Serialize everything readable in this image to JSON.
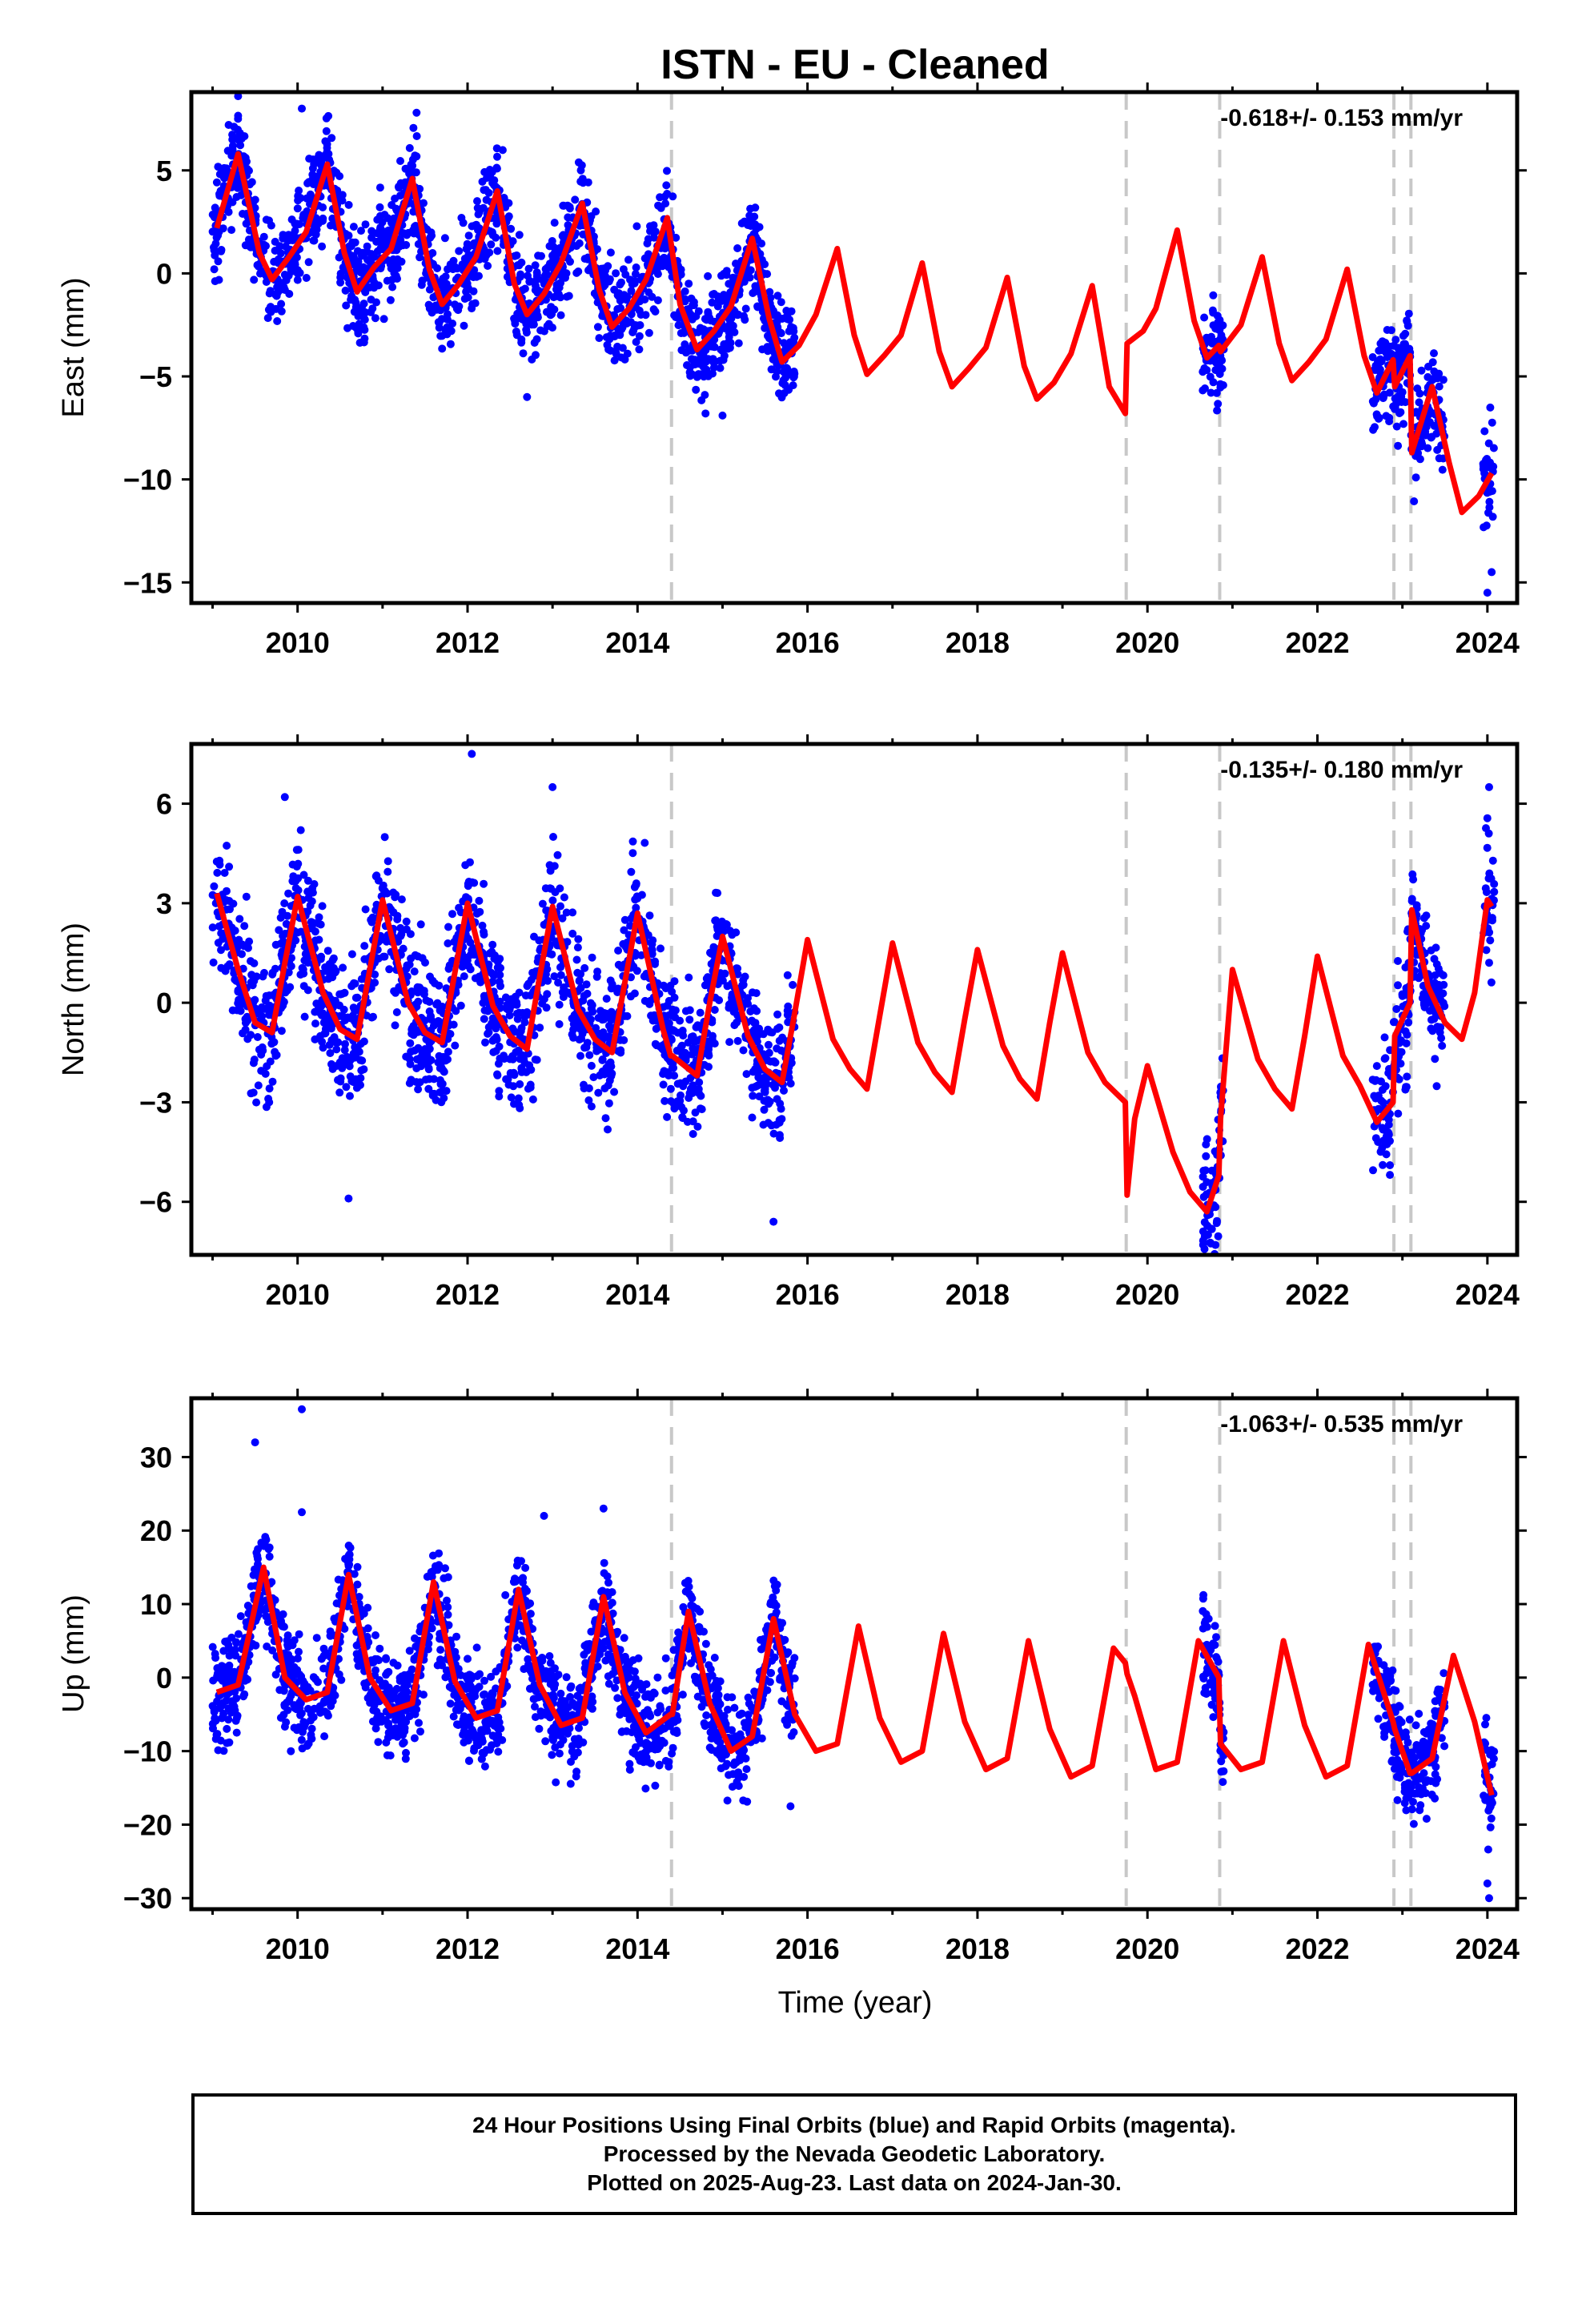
{
  "title": "ISTN  - EU - Cleaned",
  "xlabel": "Time (year)",
  "colors": {
    "points": "#0000ff",
    "model": "#ff0000",
    "breaks": "#c8c8c8"
  },
  "chart_data": [
    {
      "type": "scatter",
      "component": "East",
      "ylabel": "East (mm)",
      "rate_label": "-0.618+/- 0.153 mm/yr",
      "xlim": [
        2008.75,
        2024.35
      ],
      "ylim": [
        -16.0,
        8.8
      ],
      "xticks": [
        2010,
        2012,
        2014,
        2016,
        2018,
        2020,
        2022,
        2024
      ],
      "yticks": [
        5,
        0,
        -5,
        -10,
        -15
      ],
      "ytick_labels": [
        "5",
        "0",
        "−5",
        "−10",
        "−15"
      ],
      "breaks": [
        2014.4,
        2019.75,
        2020.85,
        2022.9,
        2023.1
      ],
      "model": {
        "x": [
          2009.05,
          2009.3,
          2009.55,
          2009.7,
          2009.9,
          2010.1,
          2010.35,
          2010.55,
          2010.7,
          2010.9,
          2011.1,
          2011.35,
          2011.55,
          2011.7,
          2011.9,
          2012.1,
          2012.35,
          2012.55,
          2012.7,
          2012.9,
          2013.1,
          2013.35,
          2013.55,
          2013.7,
          2013.9,
          2014.1,
          2014.35,
          2014.5,
          2014.7,
          2014.9,
          2015.1,
          2015.35,
          2015.55,
          2015.7,
          2015.9,
          2016.1,
          2016.35,
          2016.55,
          2016.7,
          2016.9,
          2017.1,
          2017.35,
          2017.55,
          2017.7,
          2017.9,
          2018.1,
          2018.35,
          2018.55,
          2018.7,
          2018.9,
          2019.1,
          2019.35,
          2019.55,
          2019.74,
          2019.76,
          2019.95,
          2020.1,
          2020.35,
          2020.55,
          2020.7,
          2020.84,
          2020.86,
          2021.1,
          2021.35,
          2021.55,
          2021.7,
          2021.9,
          2022.1,
          2022.35,
          2022.55,
          2022.7,
          2022.89,
          2022.91,
          2023.09,
          2023.11,
          2023.35,
          2023.55,
          2023.7,
          2023.9,
          2024.05
        ],
        "y": [
          2.2,
          5.8,
          1.0,
          -0.3,
          0.8,
          2.0,
          5.3,
          1.0,
          -0.9,
          0.3,
          1.2,
          4.6,
          0.2,
          -1.5,
          -0.5,
          0.8,
          4.0,
          -0.5,
          -2.0,
          -1.0,
          0.5,
          3.4,
          -0.8,
          -2.6,
          -1.7,
          -0.3,
          2.7,
          -1.5,
          -3.7,
          -2.8,
          -1.6,
          1.7,
          -2.2,
          -4.3,
          -3.5,
          -2.0,
          1.2,
          -3.0,
          -4.9,
          -4.0,
          -3.0,
          0.5,
          -3.8,
          -5.5,
          -4.6,
          -3.6,
          -0.2,
          -4.5,
          -6.1,
          -5.3,
          -3.9,
          -0.6,
          -5.5,
          -6.8,
          -3.4,
          -2.8,
          -1.7,
          2.1,
          -2.3,
          -4.1,
          -3.5,
          -3.8,
          -2.5,
          0.8,
          -3.4,
          -5.2,
          -4.3,
          -3.2,
          0.2,
          -4.0,
          -5.8,
          -4.2,
          -5.5,
          -4.0,
          -8.7,
          -5.5,
          -9.2,
          -11.6,
          -10.8,
          -9.7
        ]
      },
      "scatter_amp": 1.9,
      "observed_ranges": [
        [
          2009.0,
          2015.85
        ],
        [
          2020.65,
          2020.9
        ],
        [
          2022.65,
          2023.5
        ],
        [
          2023.95,
          2024.08
        ]
      ],
      "outliers": [
        {
          "x": 2009.3,
          "y": 8.6
        },
        {
          "x": 2010.05,
          "y": 8.0
        },
        {
          "x": 2011.4,
          "y": 7.8
        },
        {
          "x": 2012.7,
          "y": -6.0
        },
        {
          "x": 2014.8,
          "y": -6.8
        },
        {
          "x": 2015.0,
          "y": -6.9
        },
        {
          "x": 2024.0,
          "y": -15.5
        },
        {
          "x": 2024.05,
          "y": -14.5
        }
      ]
    },
    {
      "type": "scatter",
      "component": "North",
      "ylabel": "North (mm)",
      "rate_label": "-0.135+/- 0.180 mm/yr",
      "xlim": [
        2008.75,
        2024.35
      ],
      "ylim": [
        -7.6,
        7.8
      ],
      "xticks": [
        2010,
        2012,
        2014,
        2016,
        2018,
        2020,
        2022,
        2024
      ],
      "yticks": [
        6,
        3,
        0,
        -3,
        -6
      ],
      "ytick_labels": [
        "6",
        "3",
        "0",
        "−3",
        "−6"
      ],
      "breaks": [
        2014.4,
        2019.75,
        2020.85,
        2022.9,
        2023.1
      ],
      "model": {
        "x": [
          2009.05,
          2009.3,
          2009.5,
          2009.7,
          2009.85,
          2010.0,
          2010.3,
          2010.5,
          2010.7,
          2010.85,
          2011.0,
          2011.3,
          2011.5,
          2011.7,
          2011.85,
          2012.0,
          2012.3,
          2012.5,
          2012.7,
          2012.85,
          2013.0,
          2013.3,
          2013.5,
          2013.7,
          2013.85,
          2014.0,
          2014.3,
          2014.39,
          2014.41,
          2014.7,
          2014.85,
          2015.0,
          2015.3,
          2015.5,
          2015.7,
          2015.85,
          2016.0,
          2016.3,
          2016.5,
          2016.7,
          2016.85,
          2017.0,
          2017.3,
          2017.5,
          2017.7,
          2017.85,
          2018.0,
          2018.3,
          2018.5,
          2018.7,
          2018.85,
          2019.0,
          2019.3,
          2019.5,
          2019.74,
          2019.76,
          2019.85,
          2020.0,
          2020.3,
          2020.5,
          2020.7,
          2020.84,
          2020.86,
          2021.0,
          2021.3,
          2021.5,
          2021.7,
          2021.85,
          2022.0,
          2022.3,
          2022.5,
          2022.7,
          2022.89,
          2022.91,
          2023.09,
          2023.11,
          2023.3,
          2023.5,
          2023.7,
          2023.85,
          2024.0,
          2024.05
        ],
        "y": [
          3.3,
          1.0,
          -0.6,
          -0.9,
          1.2,
          3.2,
          0.3,
          -0.8,
          -1.1,
          1.0,
          3.1,
          0.0,
          -0.9,
          -1.2,
          0.9,
          3.0,
          -0.1,
          -1.0,
          -1.4,
          0.8,
          2.9,
          -0.2,
          -1.1,
          -1.5,
          0.6,
          2.7,
          -0.8,
          -1.6,
          -1.6,
          -2.2,
          0.0,
          2.0,
          -1.0,
          -2.0,
          -2.4,
          -0.3,
          1.9,
          -1.1,
          -2.0,
          -2.6,
          -0.4,
          1.8,
          -1.2,
          -2.1,
          -2.7,
          -0.5,
          1.6,
          -1.3,
          -2.3,
          -2.9,
          -0.6,
          1.5,
          -1.5,
          -2.4,
          -3.0,
          -5.8,
          -3.5,
          -1.9,
          -4.5,
          -5.7,
          -6.3,
          -5.2,
          -3.5,
          1.0,
          -1.7,
          -2.6,
          -3.2,
          -1.0,
          1.4,
          -1.6,
          -2.5,
          -3.6,
          -3.0,
          -1.0,
          0.0,
          2.8,
          0.5,
          -0.6,
          -1.1,
          0.3,
          3.1,
          2.9
        ]
      },
      "scatter_amp": 1.6,
      "observed_ranges": [
        [
          2009.0,
          2015.85
        ],
        [
          2020.65,
          2020.9
        ],
        [
          2022.65,
          2023.5
        ],
        [
          2023.95,
          2024.08
        ]
      ],
      "outliers": [
        {
          "x": 2012.05,
          "y": 7.5
        },
        {
          "x": 2009.85,
          "y": 6.2
        },
        {
          "x": 2013.0,
          "y": 6.5
        },
        {
          "x": 2010.6,
          "y": -5.9
        },
        {
          "x": 2015.6,
          "y": -6.6
        },
        {
          "x": 2020.8,
          "y": -7.3
        },
        {
          "x": 2024.02,
          "y": 6.5
        }
      ]
    },
    {
      "type": "scatter",
      "component": "Up",
      "ylabel": "Up (mm)",
      "rate_label": "-1.063+/- 0.535 mm/yr",
      "xlim": [
        2008.75,
        2024.35
      ],
      "ylim": [
        -31.5,
        38.0
      ],
      "xticks": [
        2010,
        2012,
        2014,
        2016,
        2018,
        2020,
        2022,
        2024
      ],
      "yticks": [
        30,
        20,
        10,
        0,
        -10,
        -20,
        -30
      ],
      "ytick_labels": [
        "30",
        "20",
        "10",
        "0",
        "−10",
        "−20",
        "−30"
      ],
      "breaks": [
        2014.4,
        2019.75,
        2020.85,
        2022.9,
        2023.1
      ],
      "model": {
        "x": [
          2009.05,
          2009.3,
          2009.6,
          2009.85,
          2010.1,
          2010.35,
          2010.6,
          2010.85,
          2011.1,
          2011.35,
          2011.6,
          2011.85,
          2012.1,
          2012.35,
          2012.6,
          2012.85,
          2013.1,
          2013.35,
          2013.6,
          2013.85,
          2014.1,
          2014.39,
          2014.41,
          2014.6,
          2014.85,
          2015.1,
          2015.35,
          2015.6,
          2015.85,
          2016.1,
          2016.35,
          2016.6,
          2016.85,
          2017.1,
          2017.35,
          2017.6,
          2017.85,
          2018.1,
          2018.35,
          2018.6,
          2018.85,
          2019.1,
          2019.35,
          2019.6,
          2019.74,
          2019.76,
          2019.85,
          2020.1,
          2020.35,
          2020.6,
          2020.84,
          2020.86,
          2021.1,
          2021.35,
          2021.6,
          2021.85,
          2022.1,
          2022.35,
          2022.6,
          2022.89,
          2022.91,
          2023.09,
          2023.11,
          2023.35,
          2023.6,
          2023.85,
          2024.05
        ],
        "y": [
          -2.0,
          -1.0,
          15.0,
          0.0,
          -3.0,
          -2.0,
          14.0,
          0.0,
          -4.5,
          -3.5,
          13.0,
          -0.5,
          -5.5,
          -4.5,
          12.0,
          -1.0,
          -6.5,
          -5.5,
          11.0,
          -2.0,
          -7.5,
          -5.0,
          -5.0,
          9.0,
          -3.5,
          -10.0,
          -8.0,
          8.0,
          -5.0,
          -10.0,
          -9.0,
          7.0,
          -5.5,
          -11.5,
          -10.0,
          6.0,
          -6.0,
          -12.5,
          -11.0,
          5.0,
          -7.0,
          -13.5,
          -12.0,
          4.0,
          2.0,
          0.5,
          -2.5,
          -12.5,
          -11.5,
          5.0,
          0.0,
          -9.0,
          -12.5,
          -11.5,
          5.0,
          -6.5,
          -13.5,
          -12.0,
          4.5,
          -6.0,
          -7.0,
          -13.0,
          -13.0,
          -11.0,
          3.0,
          -6.0,
          -16.0
        ]
      },
      "scatter_amp": 5.5,
      "observed_ranges": [
        [
          2009.0,
          2015.85
        ],
        [
          2020.65,
          2020.9
        ],
        [
          2022.65,
          2023.5
        ],
        [
          2023.95,
          2024.08
        ]
      ],
      "outliers": [
        {
          "x": 2009.5,
          "y": 32.0
        },
        {
          "x": 2010.05,
          "y": 36.5
        },
        {
          "x": 2010.05,
          "y": 22.5
        },
        {
          "x": 2013.6,
          "y": 23.0
        },
        {
          "x": 2012.9,
          "y": 22.0
        },
        {
          "x": 2015.8,
          "y": -17.5
        },
        {
          "x": 2024.02,
          "y": -30.0
        },
        {
          "x": 2024.0,
          "y": -28.0
        }
      ]
    }
  ],
  "footer": {
    "line1": "24 Hour Positions Using Final Orbits (blue) and Rapid Orbits (magenta).",
    "line2": "Processed by the Nevada Geodetic Laboratory.",
    "line3": "Plotted on 2025-Aug-23. Last data on 2024-Jan-30."
  }
}
